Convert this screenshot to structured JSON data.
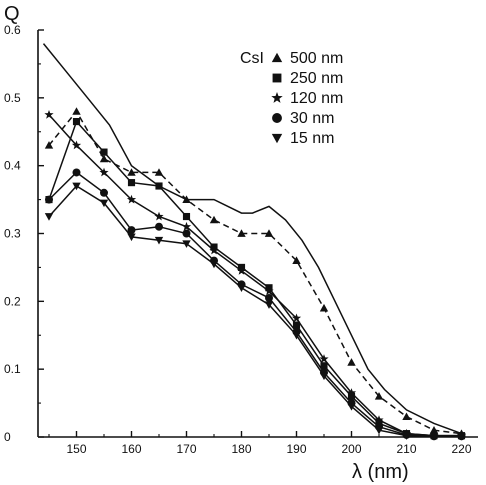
{
  "chart_data": {
    "type": "line",
    "ylabel": "Q",
    "xlabel": "λ (nm)",
    "xlim": [
      143,
      223
    ],
    "ylim": [
      0,
      0.6
    ],
    "x_ticks": [
      150,
      160,
      170,
      180,
      190,
      200,
      210,
      220
    ],
    "y_ticks": [
      0,
      0.1,
      0.2,
      0.3,
      0.4,
      0.5,
      0.6
    ],
    "y_tick_labels": [
      "0",
      "0.1",
      "0.2",
      "0.3",
      "0.4",
      "0.5",
      "0.6"
    ],
    "grid": false,
    "legend_title": "CsI",
    "legend_position": "top-right",
    "series": [
      {
        "name": "500 nm",
        "marker": "triangle-up",
        "style": "dashed",
        "x": [
          145,
          150,
          155,
          160,
          165,
          170,
          175,
          180,
          185,
          190,
          195,
          200,
          205,
          210,
          215,
          220
        ],
        "values": [
          0.43,
          0.48,
          0.41,
          0.39,
          0.39,
          0.35,
          0.32,
          0.3,
          0.3,
          0.26,
          0.19,
          0.11,
          0.06,
          0.03,
          0.01,
          0.005
        ]
      },
      {
        "name": "250 nm",
        "marker": "square",
        "style": "solid",
        "x": [
          145,
          150,
          155,
          160,
          165,
          170,
          175,
          180,
          185,
          190,
          195,
          200,
          205,
          210,
          215,
          220
        ],
        "values": [
          0.35,
          0.465,
          0.42,
          0.375,
          0.37,
          0.325,
          0.28,
          0.25,
          0.22,
          0.165,
          0.105,
          0.06,
          0.02,
          0.005,
          0.002,
          0.002
        ]
      },
      {
        "name": "120 nm",
        "marker": "star",
        "style": "solid",
        "x": [
          145,
          150,
          155,
          160,
          165,
          170,
          175,
          180,
          185,
          190,
          195,
          200,
          205,
          210,
          215,
          220
        ],
        "values": [
          0.475,
          0.43,
          0.39,
          0.35,
          0.325,
          0.31,
          0.275,
          0.245,
          0.215,
          0.175,
          0.115,
          0.065,
          0.025,
          0.005,
          0.002,
          0.002
        ]
      },
      {
        "name": "30 nm",
        "marker": "circle",
        "style": "solid",
        "x": [
          145,
          150,
          155,
          160,
          165,
          170,
          175,
          180,
          185,
          190,
          195,
          200,
          205,
          210,
          215,
          220
        ],
        "values": [
          0.35,
          0.39,
          0.36,
          0.305,
          0.31,
          0.3,
          0.26,
          0.225,
          0.205,
          0.155,
          0.095,
          0.05,
          0.015,
          0.003,
          0.001,
          0.001
        ]
      },
      {
        "name": "15 nm",
        "marker": "triangle-down",
        "style": "solid",
        "x": [
          145,
          150,
          155,
          160,
          165,
          170,
          175,
          180,
          185,
          190,
          195,
          200,
          205,
          210,
          215,
          220
        ],
        "values": [
          0.325,
          0.37,
          0.345,
          0.295,
          0.29,
          0.285,
          0.255,
          0.22,
          0.195,
          0.15,
          0.09,
          0.045,
          0.01,
          0.002,
          0.001,
          0.001
        ]
      },
      {
        "name": "",
        "marker": "none",
        "style": "solid",
        "x": [
          144,
          148,
          152,
          156,
          160,
          165,
          170,
          175,
          180,
          182,
          185,
          188,
          191,
          194,
          197,
          200,
          203,
          206,
          210,
          215,
          220
        ],
        "values": [
          0.58,
          0.54,
          0.5,
          0.46,
          0.4,
          0.37,
          0.35,
          0.35,
          0.33,
          0.33,
          0.34,
          0.32,
          0.29,
          0.25,
          0.2,
          0.15,
          0.1,
          0.07,
          0.04,
          0.02,
          0.005
        ]
      }
    ]
  }
}
